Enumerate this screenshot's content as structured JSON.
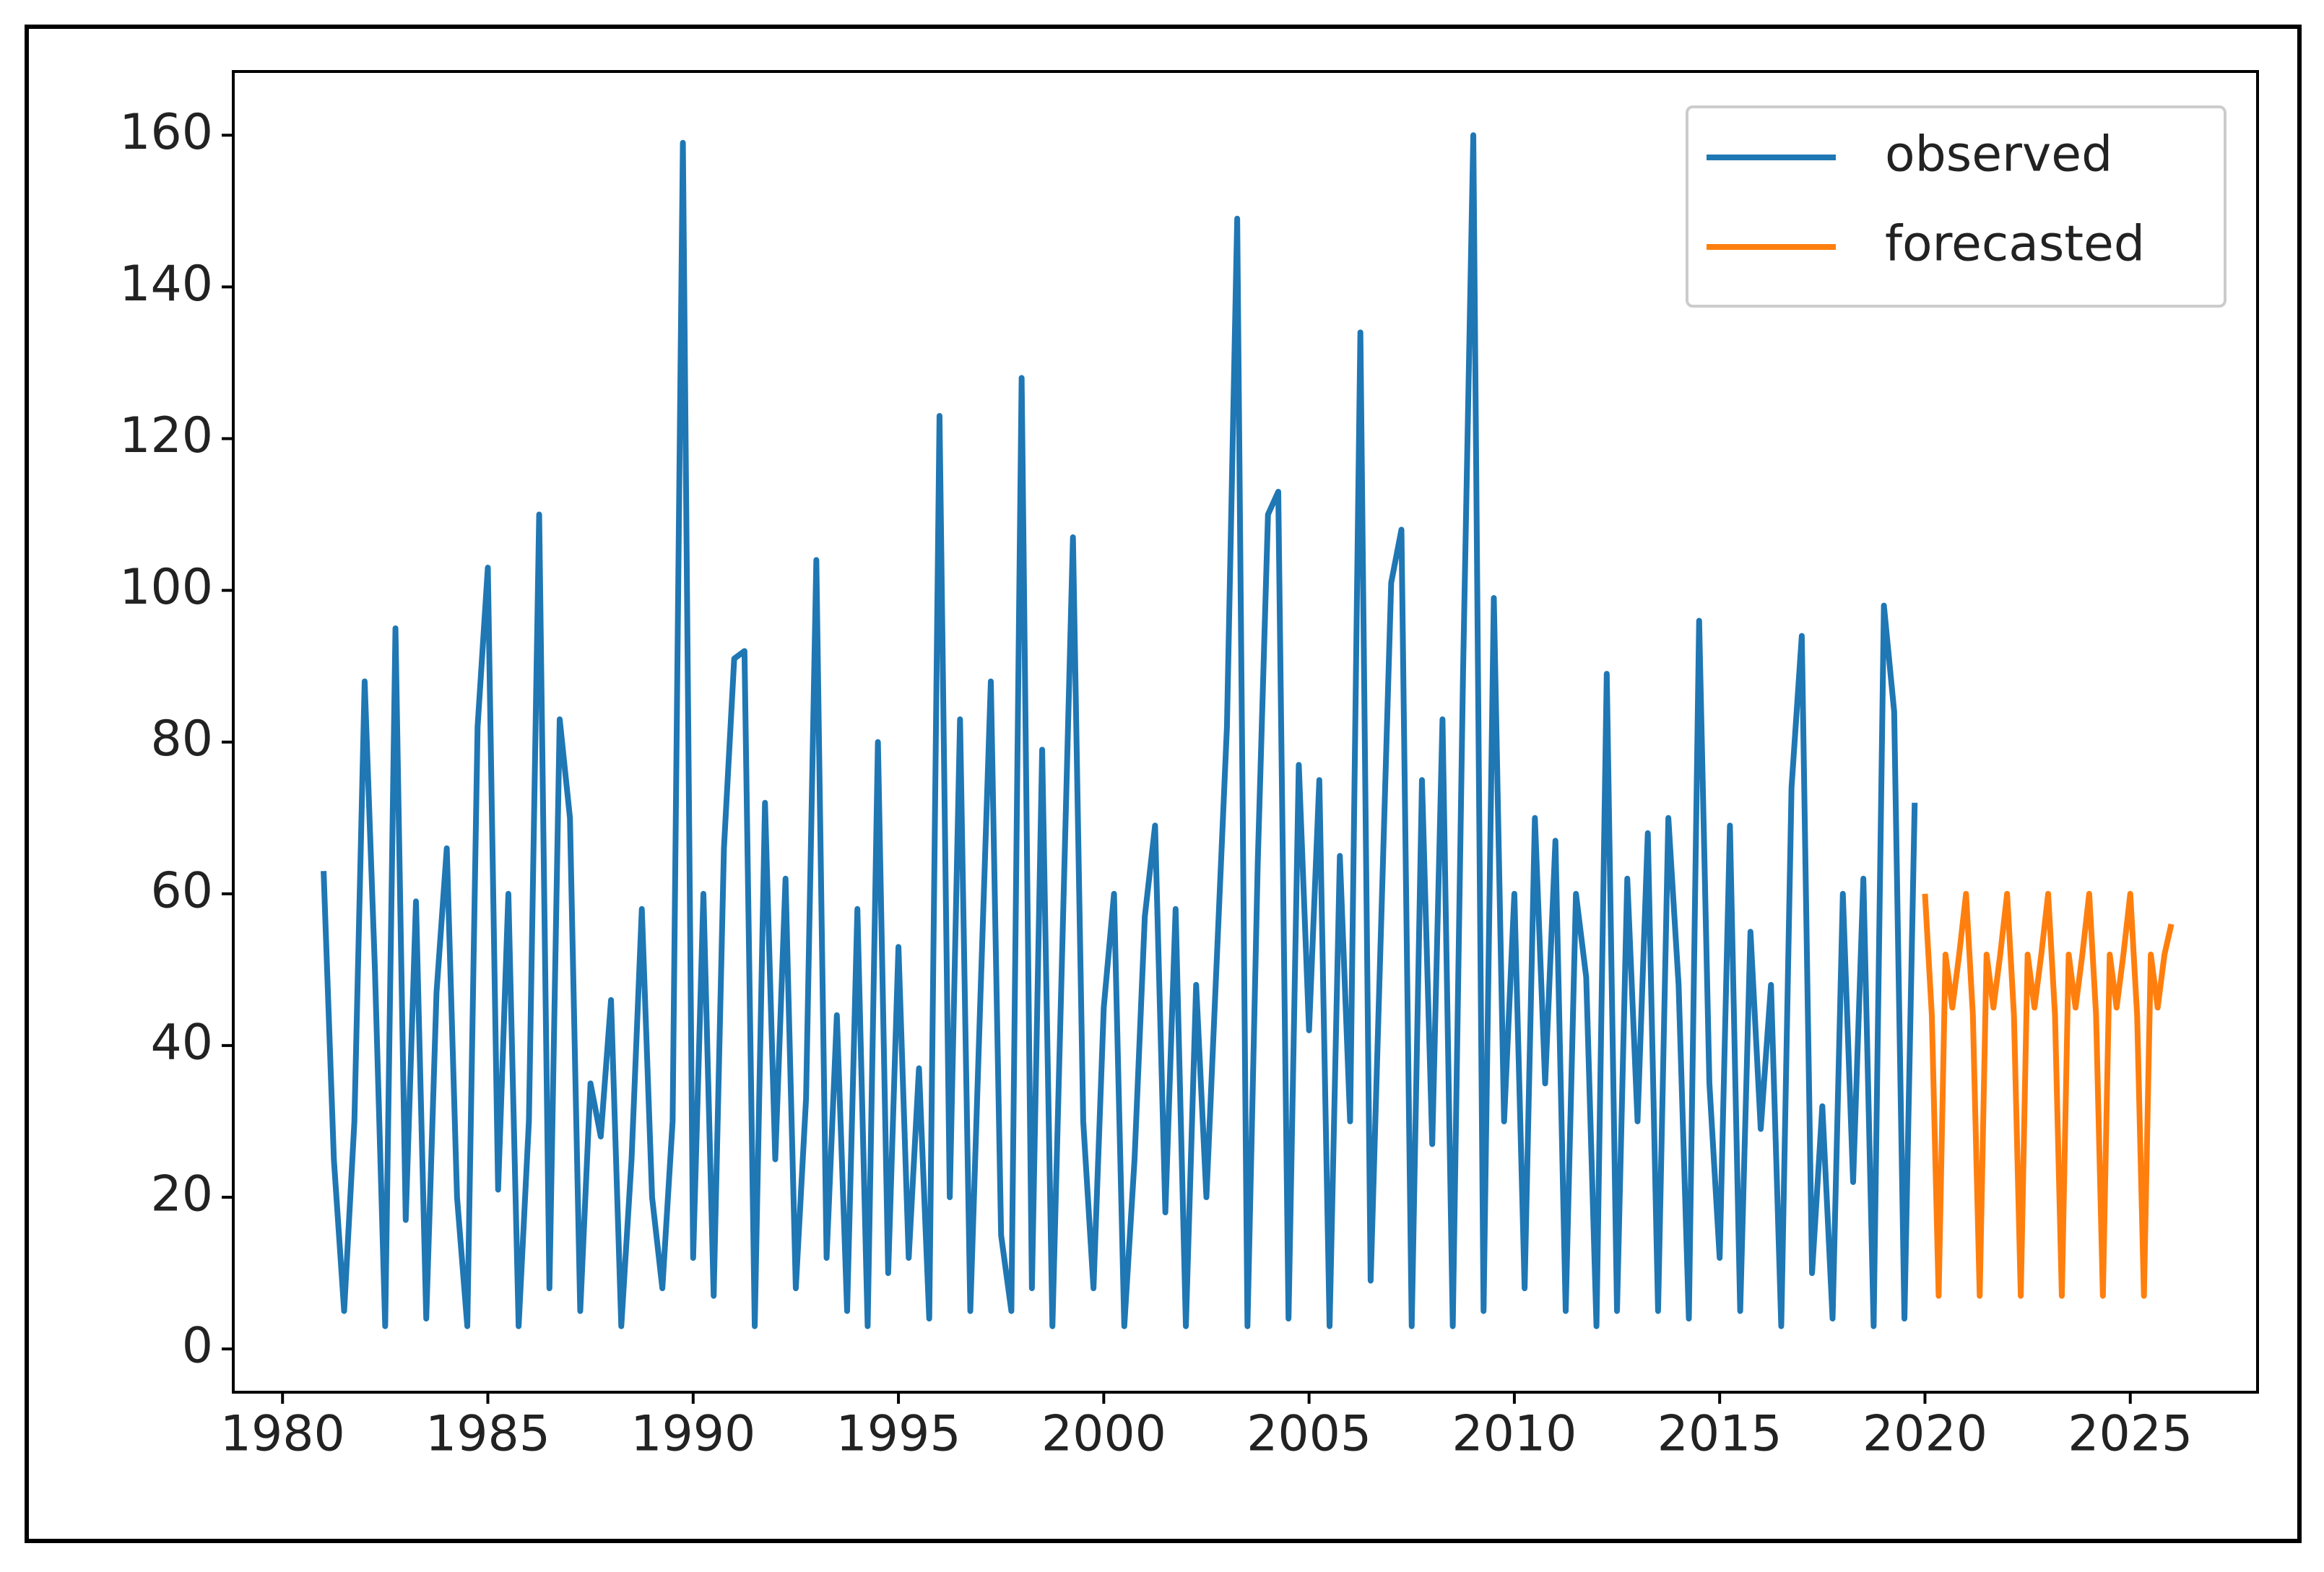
{
  "chart_data": {
    "type": "line",
    "xlim": [
      1978.8,
      2028.1
    ],
    "xticks": [
      1980,
      1985,
      1990,
      1995,
      2000,
      2005,
      2010,
      2015,
      2020,
      2025
    ],
    "ylim": [
      -5.7,
      168.4
    ],
    "yticks": [
      0,
      20,
      40,
      60,
      80,
      100,
      120,
      140,
      160
    ],
    "legend": "upper right",
    "series": [
      {
        "name": "observed",
        "color": "#1f77b4",
        "x": [
          1981,
          1981.25,
          1981.5,
          1981.75,
          1982,
          1982.25,
          1982.5,
          1982.75,
          1983,
          1983.25,
          1983.5,
          1983.75,
          1984,
          1984.25,
          1984.5,
          1984.75,
          1985,
          1985.25,
          1985.5,
          1985.75,
          1986,
          1986.25,
          1986.5,
          1986.75,
          1987,
          1987.25,
          1987.5,
          1987.75,
          1988,
          1988.25,
          1988.5,
          1988.75,
          1989,
          1989.25,
          1989.5,
          1989.75,
          1990,
          1990.25,
          1990.5,
          1990.75,
          1991,
          1991.25,
          1991.5,
          1991.75,
          1992,
          1992.25,
          1992.5,
          1992.75,
          1993,
          1993.25,
          1993.5,
          1993.75,
          1994,
          1994.25,
          1994.5,
          1994.75,
          1995,
          1995.25,
          1995.5,
          1995.75,
          1996,
          1996.25,
          1996.5,
          1996.75,
          1997,
          1997.25,
          1997.5,
          1997.75,
          1998,
          1998.25,
          1998.5,
          1998.75,
          1999,
          1999.25,
          1999.5,
          1999.75,
          2000,
          2000.25,
          2000.5,
          2000.75,
          2001,
          2001.25,
          2001.5,
          2001.75,
          2002,
          2002.25,
          2002.5,
          2002.75,
          2003,
          2003.25,
          2003.5,
          2003.75,
          2004,
          2004.25,
          2004.5,
          2004.75,
          2005,
          2005.25,
          2005.5,
          2005.75,
          2006,
          2006.25,
          2006.5,
          2006.75,
          2007,
          2007.25,
          2007.5,
          2007.75,
          2008,
          2008.25,
          2008.5,
          2008.75,
          2009,
          2009.25,
          2009.5,
          2009.75,
          2010,
          2010.25,
          2010.5,
          2010.75,
          2011,
          2011.25,
          2011.5,
          2011.75,
          2012,
          2012.25,
          2012.5,
          2012.75,
          2013,
          2013.25,
          2013.5,
          2013.75,
          2014,
          2014.25,
          2014.5,
          2014.75,
          2015,
          2015.25,
          2015.5,
          2015.75,
          2016,
          2016.25,
          2016.5,
          2016.75,
          2017,
          2017.25,
          2017.5,
          2017.75,
          2018,
          2018.25,
          2018.5,
          2018.75,
          2019,
          2019.25,
          2019.5,
          2019.75
        ],
        "values": [
          63,
          25,
          5,
          30,
          88,
          50,
          3,
          95,
          17,
          59,
          4,
          47,
          66,
          20,
          3,
          82,
          103,
          21,
          60,
          3,
          30,
          110,
          8,
          83,
          70,
          5,
          35,
          28,
          46,
          3,
          25,
          58,
          20,
          8,
          30,
          159,
          12,
          60,
          7,
          66,
          91,
          92,
          3,
          72,
          25,
          62,
          8,
          33,
          104,
          12,
          44,
          5,
          58,
          3,
          80,
          10,
          53,
          12,
          37,
          4,
          123,
          20,
          83,
          5,
          47,
          88,
          15,
          5,
          128,
          8,
          79,
          3,
          55,
          107,
          30,
          8,
          45,
          60,
          3,
          25,
          57,
          69,
          18,
          58,
          3,
          48,
          20,
          51,
          82,
          149,
          3,
          64,
          110,
          113,
          4,
          77,
          42,
          75,
          3,
          65,
          30,
          134,
          9,
          55,
          101,
          108,
          3,
          75,
          27,
          83,
          3,
          89,
          160,
          5,
          99,
          30,
          60,
          8,
          70,
          35,
          67,
          5,
          60,
          49,
          3,
          89,
          5,
          62,
          30,
          68,
          5,
          70,
          48,
          4,
          96,
          35,
          12,
          69,
          5,
          55,
          29,
          48,
          3,
          74,
          94,
          10,
          32,
          4,
          60,
          22,
          62,
          3,
          98,
          84,
          4,
          72
        ]
      },
      {
        "name": "forecasted",
        "color": "#ff7f0e",
        "x": [
          2020,
          2020.167,
          2020.333,
          2020.5,
          2020.667,
          2020.833,
          2021,
          2021.167,
          2021.333,
          2021.5,
          2021.667,
          2021.833,
          2022,
          2022.167,
          2022.333,
          2022.5,
          2022.667,
          2022.833,
          2023,
          2023.167,
          2023.333,
          2023.5,
          2023.667,
          2023.833,
          2024,
          2024.167,
          2024.333,
          2024.5,
          2024.667,
          2024.833,
          2025,
          2025.167,
          2025.333,
          2025.5,
          2025.667,
          2025.833,
          2026
        ],
        "values": [
          60,
          44,
          7,
          52,
          45,
          52,
          60,
          44,
          7,
          52,
          45,
          52,
          60,
          44,
          7,
          52,
          45,
          52,
          60,
          44,
          7,
          52,
          45,
          52,
          60,
          44,
          7,
          52,
          45,
          52,
          60,
          44,
          7,
          52,
          45,
          52,
          56
        ]
      }
    ]
  }
}
